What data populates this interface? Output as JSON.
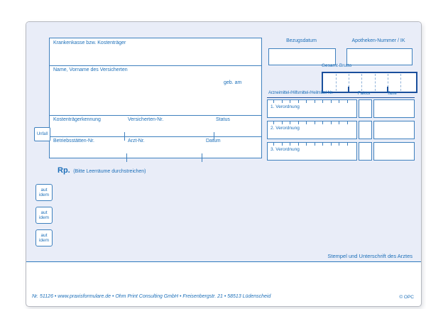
{
  "colors": {
    "accent_blue": "#1c6fb9",
    "dark_blue": "#1a4f9c",
    "form_tint": "#e9edf8"
  },
  "form": {
    "insurance_box": {
      "payer_label": "Krankenkasse bzw. Kostenträger",
      "name_label": "Name, Vorname des Versicherten",
      "birthdate_label": "geb. am",
      "fields_row1": [
        "Kostenträgerkennung",
        "Versicherten-Nr.",
        "Status"
      ],
      "fields_row2": [
        "Betriebsstätten-Nr.",
        "Arzt-Nr.",
        "Datum"
      ]
    },
    "unfall_label": "Unfall",
    "rp": {
      "label": "Rp.",
      "note": "(Bitte Leerräume durchstreichen)"
    },
    "aut_idem": {
      "line1": "aut",
      "line2": "idem"
    },
    "pharmacy": {
      "bezugsdatum_label": "Bezugsdatum",
      "apotheken_label": "Apotheken-Nummer / IK",
      "gesamt_brutto_label": "Gesamt-Brutto",
      "columns": {
        "nr": "Arzneimittel-/Hilfsmittel-/Heilmittel-Nr.",
        "faktor": "Faktor",
        "taxe": "Taxe"
      },
      "rows": [
        "1. Verordnung",
        "2. Verordnung",
        "3. Verordnung"
      ]
    },
    "stempel_label": "Stempel und Unterschrift des Arztes",
    "footer": {
      "info": "Nr. 51126 • www.praxisformulare.de • Ohm Print Consulting GmbH • Freisenbergstr. 21 • 58513 Lüdenscheid",
      "copyright": "© OPC"
    }
  }
}
